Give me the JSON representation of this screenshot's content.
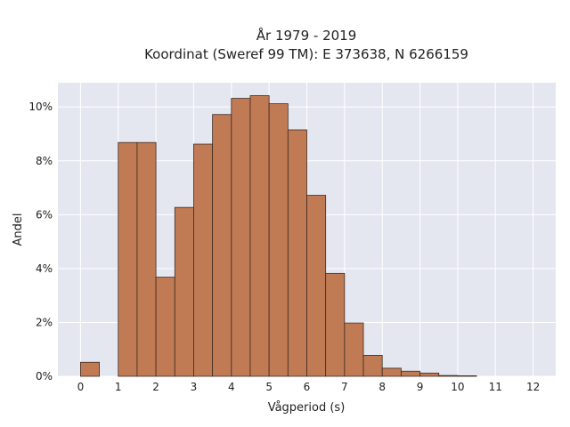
{
  "chart_data": {
    "type": "bar",
    "title_lines": [
      "År 1979 - 2019",
      "Koordinat (Sweref 99 TM): E 373638, N 6266159"
    ],
    "xlabel": "Vågperiod (s)",
    "ylabel": "Andel",
    "x_ticks": [
      "0",
      "1",
      "2",
      "3",
      "4",
      "5",
      "6",
      "7",
      "8",
      "9",
      "10",
      "11",
      "12"
    ],
    "y_ticks": [
      "0%",
      "2%",
      "4%",
      "6%",
      "8%",
      "10%"
    ],
    "xlim": [
      -0.6,
      12.6
    ],
    "ylim": [
      0,
      10.9
    ],
    "grid": true,
    "bin_width": 0.5,
    "bars": [
      {
        "x": 0.0,
        "value": 0.52
      },
      {
        "x": 1.0,
        "value": 8.68
      },
      {
        "x": 1.5,
        "value": 8.68
      },
      {
        "x": 2.0,
        "value": 3.68
      },
      {
        "x": 2.5,
        "value": 6.27
      },
      {
        "x": 3.0,
        "value": 8.62
      },
      {
        "x": 3.5,
        "value": 9.72
      },
      {
        "x": 4.0,
        "value": 10.32
      },
      {
        "x": 4.5,
        "value": 10.42
      },
      {
        "x": 5.0,
        "value": 10.12
      },
      {
        "x": 5.5,
        "value": 9.15
      },
      {
        "x": 6.0,
        "value": 6.72
      },
      {
        "x": 6.5,
        "value": 3.82
      },
      {
        "x": 7.0,
        "value": 1.98
      },
      {
        "x": 7.5,
        "value": 0.78
      },
      {
        "x": 8.0,
        "value": 0.3
      },
      {
        "x": 8.5,
        "value": 0.19
      },
      {
        "x": 9.0,
        "value": 0.12
      },
      {
        "x": 9.5,
        "value": 0.03
      },
      {
        "x": 10.0,
        "value": 0.02
      }
    ],
    "colors": {
      "bar_fill": "#c07b55",
      "bar_edge": "#3d2a20",
      "plot_background": "#e5e7f0",
      "grid": "#ffffff"
    }
  }
}
